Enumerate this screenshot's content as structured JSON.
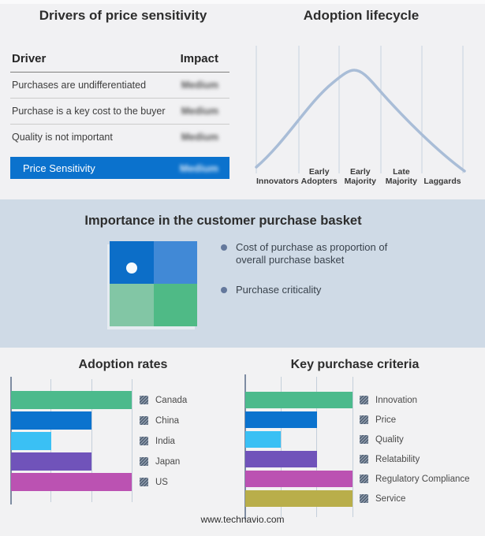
{
  "panels": {
    "drivers": {
      "title": "Drivers of price sensitivity",
      "table": {
        "headers": {
          "driver": "Driver",
          "impact": "Impact"
        },
        "rows": [
          {
            "driver": "Purchases are undifferentiated",
            "impact": "Medium",
            "impact_obscured": true
          },
          {
            "driver": "Purchase is a key cost to the buyer",
            "impact": "Medium",
            "impact_obscured": true
          },
          {
            "driver": "Quality is not important",
            "impact": "Medium",
            "impact_obscured": true
          }
        ],
        "highlight_row": {
          "driver": "Price Sensitivity",
          "impact": "Medium",
          "impact_obscured": true,
          "color": "#0b72cd"
        }
      }
    },
    "basket": {
      "title": "Importance in the customer purchase basket",
      "legend": [
        "Cost of purchase as proportion of overall purchase basket",
        "Purchase criticality"
      ],
      "quadrant_colors": [
        "#0c6ec8",
        "#4189d6",
        "#82c6a5",
        "#4fba86"
      ],
      "marker_color": "#f6fafd",
      "background": "#cfdae6",
      "bullet_color": "#64789c"
    }
  },
  "footer": {
    "url": "www.technavio.com"
  },
  "chart_data": [
    {
      "id": "adoption_lifecycle",
      "type": "line",
      "title": "Adoption lifecycle",
      "shape": "bell-curve",
      "stages": [
        "Innovators",
        "Early Adopters",
        "Early Majority",
        "Late Majority",
        "Laggards"
      ],
      "peak_stage": "Early Majority",
      "curve_color": "#a9bdd7",
      "gridline_color": "#c7d2df",
      "grid": "vertical-stage-separators"
    },
    {
      "id": "adoption_rates",
      "type": "bar",
      "title": "Adoption rates",
      "orientation": "horizontal",
      "categories": [
        "Canada",
        "China",
        "India",
        "Japan",
        "US"
      ],
      "values": [
        3,
        2,
        1,
        2,
        3
      ],
      "colors": [
        "#4cba8c",
        "#0b73ce",
        "#3ac0f4",
        "#7053ba",
        "#bb52b2"
      ],
      "xlim": [
        0,
        3
      ],
      "gridlines": [
        0,
        1,
        2,
        3
      ],
      "xlabel": "",
      "ylabel": "",
      "legend_position": "right",
      "note": "axis unlabeled; values estimated in gridline units"
    },
    {
      "id": "key_purchase_criteria",
      "type": "bar",
      "title": "Key purchase criteria",
      "orientation": "horizontal",
      "categories": [
        "Innovation",
        "Price",
        "Quality",
        "Relatability",
        "Regulatory Compliance",
        "Service"
      ],
      "values": [
        3,
        2,
        1,
        2,
        3,
        3
      ],
      "colors": [
        "#4cba8c",
        "#0b73ce",
        "#3ac0f4",
        "#7053ba",
        "#bb52b2",
        "#b9ae4a"
      ],
      "xlim": [
        0,
        3
      ],
      "gridlines": [
        0,
        1,
        2,
        3
      ],
      "xlabel": "",
      "ylabel": "",
      "legend_position": "right",
      "note": "axis unlabeled; values estimated in gridline units"
    }
  ]
}
